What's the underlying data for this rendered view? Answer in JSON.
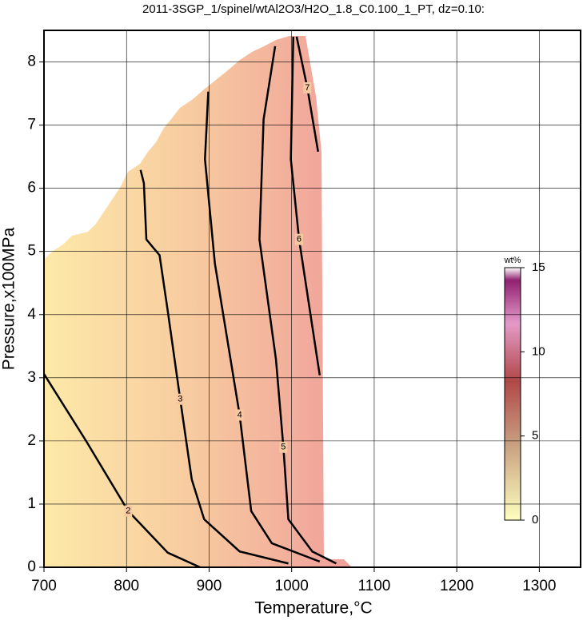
{
  "chart_data": {
    "type": "contour",
    "title": "2011-3SGP_1/spinel/wtAl2O3/H2O_1.8_C0.100_1_PT, dz=0.10:",
    "x_label": "Temperature,°C",
    "y_label": "Pressure,x100MPa",
    "xlim": [
      700,
      1350
    ],
    "ylim": [
      0,
      8.5
    ],
    "xticks": [
      700,
      800,
      900,
      1000,
      1100,
      1200,
      1300
    ],
    "yticks": [
      0,
      1,
      2,
      3,
      4,
      5,
      6,
      7,
      8
    ],
    "grid": true,
    "series": [
      {
        "name": "2",
        "color": "#000000",
        "x": [
          700,
          751,
          802,
          850,
          889
        ],
        "y": [
          3.06,
          2.0,
          0.89,
          0.23,
          0
        ]
      },
      {
        "name": "3",
        "color": "#000000",
        "x": [
          817,
          821,
          824,
          840,
          850,
          865,
          879,
          894,
          937,
          996
        ],
        "y": [
          6.29,
          6.08,
          5.19,
          4.94,
          4.05,
          2.66,
          1.39,
          0.76,
          0.25,
          0.06
        ]
      },
      {
        "name": "4",
        "color": "#000000",
        "x": [
          899,
          895,
          907,
          937,
          951,
          976,
          1034
        ],
        "y": [
          7.53,
          6.46,
          4.81,
          2.41,
          0.89,
          0.38,
          0.09
        ]
      },
      {
        "name": "5",
        "color": "#000000",
        "x": [
          980,
          966,
          961,
          981,
          990,
          996,
          1025,
          1054
        ],
        "y": [
          8.25,
          7.09,
          5.19,
          3.29,
          1.9,
          0.76,
          0.25,
          0.06
        ]
      },
      {
        "name": "6",
        "color": "#000000",
        "x": [
          1002,
          999,
          1009,
          1034
        ],
        "y": [
          8.4,
          6.46,
          5.19,
          3.04
        ]
      },
      {
        "name": "7",
        "color": "#000000",
        "x": [
          1006,
          1019,
          1032
        ],
        "y": [
          8.4,
          7.59,
          6.58
        ]
      }
    ],
    "colorbar": {
      "label": "wt%",
      "lim": [
        0,
        15
      ],
      "ticks": [
        0,
        5,
        10,
        15
      ]
    }
  }
}
